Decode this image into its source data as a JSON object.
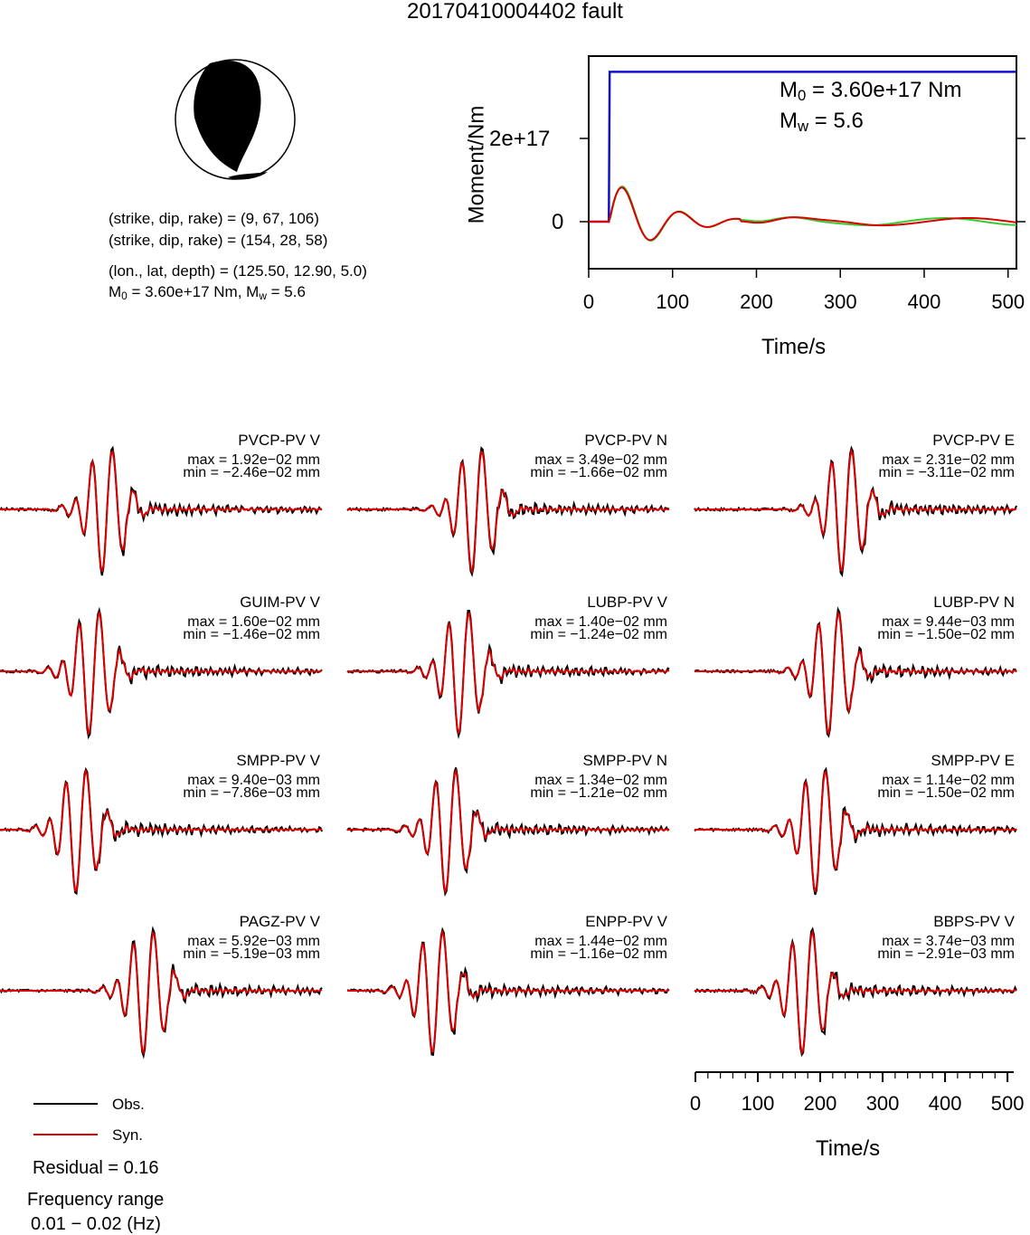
{
  "title": "20170410004402 fault",
  "beachball": {
    "planes": [
      "(strike, dip, rake) = (9, 67, 106)",
      "(strike, dip, rake) = (154, 28, 58)"
    ],
    "location": "(lon., lat, depth) = (125.50, 12.90, 5.0)",
    "m0_prefix": "M",
    "m0_sub": "0",
    "m0_text": " = 3.60e+17 Nm, M",
    "mw_sub": "w",
    "mw_text": " = 5.6"
  },
  "moment_plot": {
    "ylabel": "Moment/Nm",
    "xlabel": "Time/s",
    "yticks": [
      "2e+17",
      "0"
    ],
    "xticks": [
      "0",
      "100",
      "200",
      "300",
      "400",
      "500"
    ],
    "annot_m0_prefix": "M",
    "annot_m0_sub": "0",
    "annot_m0": " = 3.60e+17 Nm",
    "annot_mw_prefix": "M",
    "annot_mw_sub": "w",
    "annot_mw": " = 5.6"
  },
  "legend": {
    "obs": "Obs.",
    "syn": "Syn.",
    "residual": "Residual = 0.16",
    "freq_label": "Frequency range",
    "freq_value": "0.01 − 0.02 (Hz)"
  },
  "time_axis": {
    "xlabel": "Time/s",
    "ticks": [
      "0",
      "100",
      "200",
      "300",
      "400",
      "500"
    ]
  },
  "colors": {
    "obs": "#000000",
    "syn": "#dd0000",
    "moment": "#1010cc",
    "green": "#33cc33"
  },
  "chart_data": {
    "type": "line",
    "moment": {
      "xlim": [
        0,
        510
      ],
      "m0": 3.6e+17,
      "rise_time": 25
    },
    "traces": [
      {
        "station": "PVCP-PV V",
        "max": "max = 1.92e−02 mm",
        "min": "min = −2.46e−02 mm"
      },
      {
        "station": "PVCP-PV N",
        "max": "max = 3.49e−02 mm",
        "min": "min = −1.66e−02 mm"
      },
      {
        "station": "PVCP-PV E",
        "max": "max = 2.31e−02 mm",
        "min": "min = −3.11e−02 mm"
      },
      {
        "station": "GUIM-PV V",
        "max": "max = 1.60e−02 mm",
        "min": "min = −1.46e−02 mm"
      },
      {
        "station": "LUBP-PV V",
        "max": "max = 1.40e−02 mm",
        "min": "min = −1.24e−02 mm"
      },
      {
        "station": "LUBP-PV N",
        "max": "max = 9.44e−03 mm",
        "min": "min = −1.50e−02 mm"
      },
      {
        "station": "SMPP-PV V",
        "max": "max = 9.40e−03 mm",
        "min": "min = −7.86e−03 mm"
      },
      {
        "station": "SMPP-PV N",
        "max": "max = 1.34e−02 mm",
        "min": "min = −1.21e−02 mm"
      },
      {
        "station": "SMPP-PV E",
        "max": "max = 1.14e−02 mm",
        "min": "min = −1.50e−02 mm"
      },
      {
        "station": "PAGZ-PV V",
        "max": "max = 5.92e−03 mm",
        "min": "min = −5.19e−03 mm"
      },
      {
        "station": "ENPP-PV V",
        "max": "max = 1.44e−02 mm",
        "min": "min = −1.16e−02 mm"
      },
      {
        "station": "BBPS-PV V",
        "max": "max = 3.74e−03 mm",
        "min": "min = −2.91e−03 mm"
      }
    ]
  }
}
